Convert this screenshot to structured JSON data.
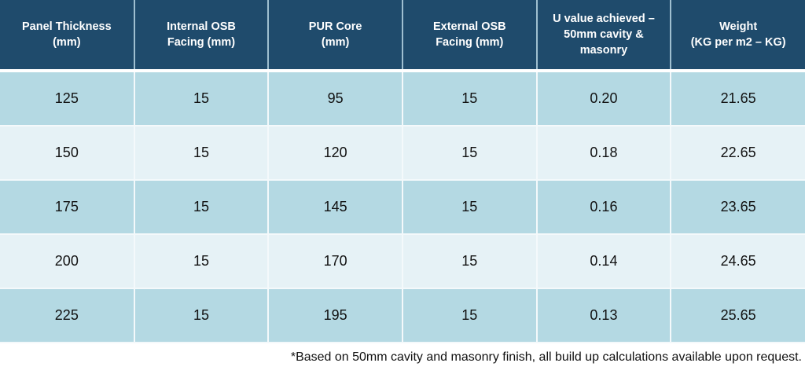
{
  "table": {
    "headers": [
      [
        "Panel Thickness",
        "(mm)"
      ],
      [
        "Internal OSB",
        "Facing (mm)"
      ],
      [
        "PUR Core",
        "(mm)"
      ],
      [
        "External OSB",
        "Facing (mm)"
      ],
      [
        "U value achieved –",
        "50mm cavity &",
        "masonry"
      ],
      [
        "Weight",
        "(KG per m2 – KG)"
      ]
    ],
    "rows": [
      [
        "125",
        "15",
        "95",
        "15",
        "0.20",
        "21.65"
      ],
      [
        "150",
        "15",
        "120",
        "15",
        "0.18",
        "22.65"
      ],
      [
        "175",
        "15",
        "145",
        "15",
        "0.16",
        "23.65"
      ],
      [
        "200",
        "15",
        "170",
        "15",
        "0.14",
        "24.65"
      ],
      [
        "225",
        "15",
        "195",
        "15",
        "0.13",
        "25.65"
      ]
    ]
  },
  "footnote": "*Based on 50mm cavity and masonry finish, all build up calculations available upon request.",
  "colors": {
    "header": "#1f4b6c",
    "row_dark": "#b4d9e3",
    "row_light": "#e6f2f6"
  }
}
